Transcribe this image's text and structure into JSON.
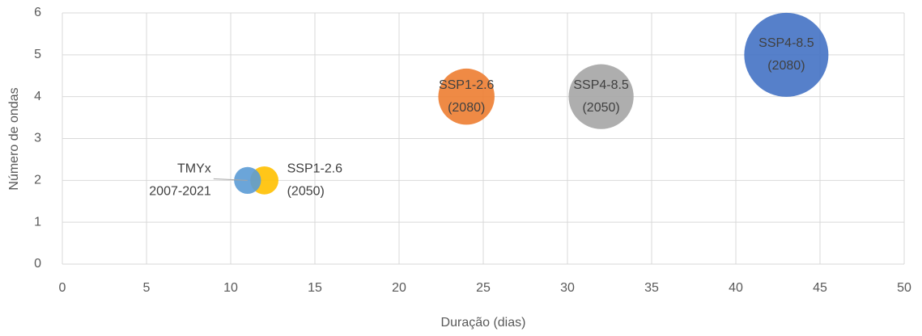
{
  "chart_data": {
    "type": "bubble",
    "x_label": "Duração (dias)",
    "y_label": "Número de ondas",
    "points": [
      {
        "label": [
          "SSP1-2.6",
          "(2050)"
        ],
        "x": 12,
        "y": 2,
        "size": 24,
        "color": "#FFC000"
      },
      {
        "label": [
          "TMYx",
          "2007-2021"
        ],
        "x": 11,
        "y": 2,
        "size": 22,
        "color": "#5B9BD5"
      },
      {
        "label": [
          "SSP1-2.6",
          "(2080)"
        ],
        "x": 24,
        "y": 4,
        "size": 96,
        "color": "#ED7D31"
      },
      {
        "label": [
          "SSP4-8.5",
          "(2050)"
        ],
        "x": 32,
        "y": 4,
        "size": 128,
        "color": "#A5A5A5"
      },
      {
        "label": [
          "SSP4-8.5",
          "(2080)"
        ],
        "x": 43,
        "y": 5,
        "size": 215,
        "color": "#4472C4"
      }
    ],
    "xlim": [
      0,
      50
    ],
    "xticks": [
      0,
      5,
      10,
      15,
      20,
      25,
      30,
      35,
      40,
      45,
      50
    ],
    "ylim": [
      0,
      6
    ],
    "yticks": [
      0,
      1,
      2,
      3,
      4,
      5,
      6
    ],
    "grid": true
  }
}
